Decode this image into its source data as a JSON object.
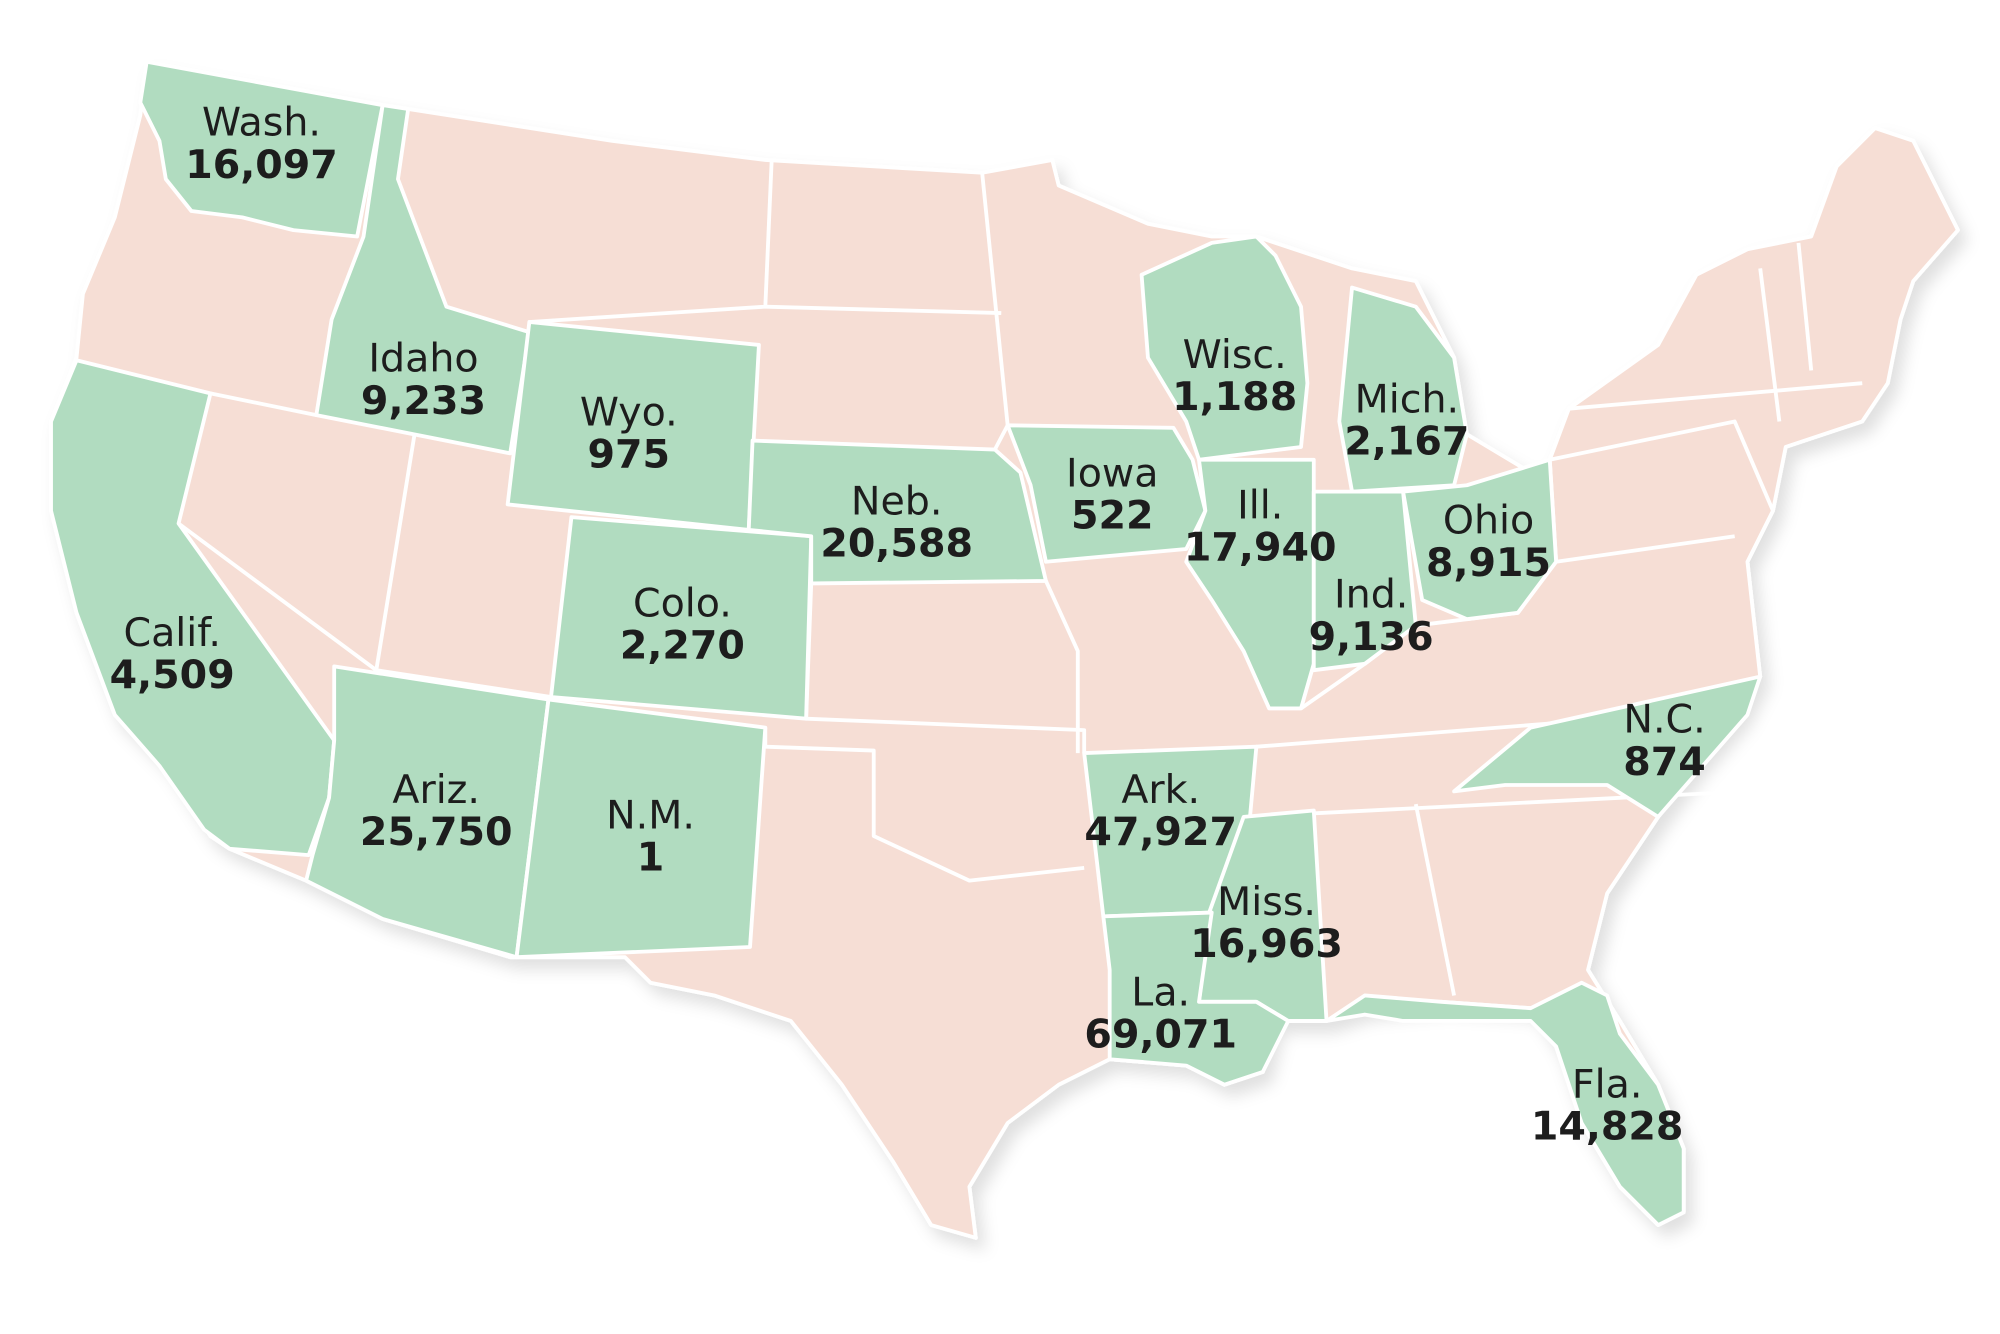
{
  "states": [
    {
      "name": "Wash.",
      "value": "16,097"
    },
    {
      "name": "Idaho",
      "value": "9,233"
    },
    {
      "name": "Wyo.",
      "value": "975"
    },
    {
      "name": "Calif.",
      "value": "4,509"
    },
    {
      "name": "Ariz.",
      "value": "25,750"
    },
    {
      "name": "N.M.",
      "value": "1"
    },
    {
      "name": "Colo.",
      "value": "2,270"
    },
    {
      "name": "Neb.",
      "value": "20,588"
    },
    {
      "name": "Iowa",
      "value": "522"
    },
    {
      "name": "Wisc.",
      "value": "1,188"
    },
    {
      "name": "Mich.",
      "value": "2,167"
    },
    {
      "name": "Ill.",
      "value": "17,940"
    },
    {
      "name": "Ind.",
      "value": "9,136"
    },
    {
      "name": "Ohio",
      "value": "8,915"
    },
    {
      "name": "N.C.",
      "value": "874"
    },
    {
      "name": "Ark.",
      "value": "47,927"
    },
    {
      "name": "Miss.",
      "value": "16,963"
    },
    {
      "name": "La.",
      "value": "69,071"
    },
    {
      "name": "Fla.",
      "value": "14,828"
    }
  ]
}
